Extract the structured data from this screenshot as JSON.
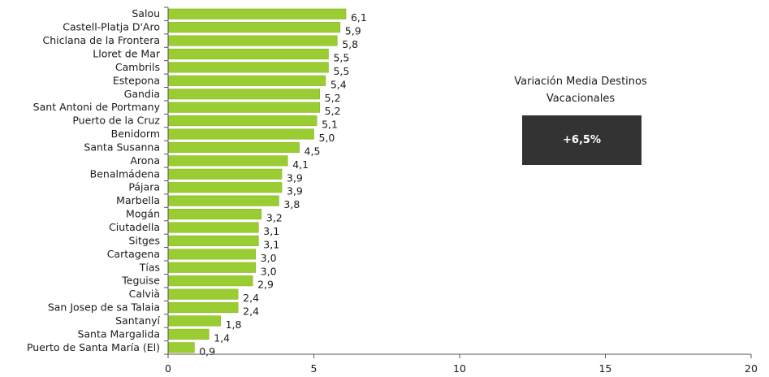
{
  "chart_data": {
    "type": "bar",
    "orientation": "horizontal",
    "categories": [
      "Salou",
      "Castell-Platja D'Aro",
      "Chiclana de la Frontera",
      "Lloret de Mar",
      "Cambrils",
      "Estepona",
      "Gandia",
      "Sant Antoni de Portmany",
      "Puerto de la Cruz",
      "Benidorm",
      "Santa Susanna",
      "Arona",
      "Benalmádena",
      "Pájara",
      "Marbella",
      "Mogán",
      "Ciutadella",
      "Sitges",
      "Cartagena",
      "Tías",
      "Teguise",
      "Calvià",
      "San Josep de sa Talaia",
      "Santanyí",
      "Santa Margalida",
      "Puerto de Santa María (El)"
    ],
    "values": [
      6.1,
      5.9,
      5.8,
      5.5,
      5.5,
      5.4,
      5.2,
      5.2,
      5.1,
      5.0,
      4.5,
      4.1,
      3.9,
      3.9,
      3.8,
      3.2,
      3.1,
      3.1,
      3.0,
      3.0,
      2.9,
      2.4,
      2.4,
      1.8,
      1.4,
      0.9
    ],
    "value_labels": [
      "6,1",
      "5,9",
      "5,8",
      "5,5",
      "5,5",
      "5,4",
      "5,2",
      "5,2",
      "5,1",
      "5,0",
      "4,5",
      "4,1",
      "3,9",
      "3,9",
      "3,8",
      "3,2",
      "3,1",
      "3,1",
      "3,0",
      "3,0",
      "2,9",
      "2,4",
      "2,4",
      "1,8",
      "1,4",
      "0,9"
    ],
    "xlim": [
      0,
      20
    ],
    "xticks": [
      0,
      5,
      10,
      15,
      20
    ],
    "grid": false,
    "bar_color": "#9acd32",
    "title": "",
    "xlabel": "",
    "ylabel": ""
  },
  "annotation": {
    "title": "Variación Media Destinos Vacacionales",
    "value": "+6,5%",
    "badge_color": "#333333"
  }
}
